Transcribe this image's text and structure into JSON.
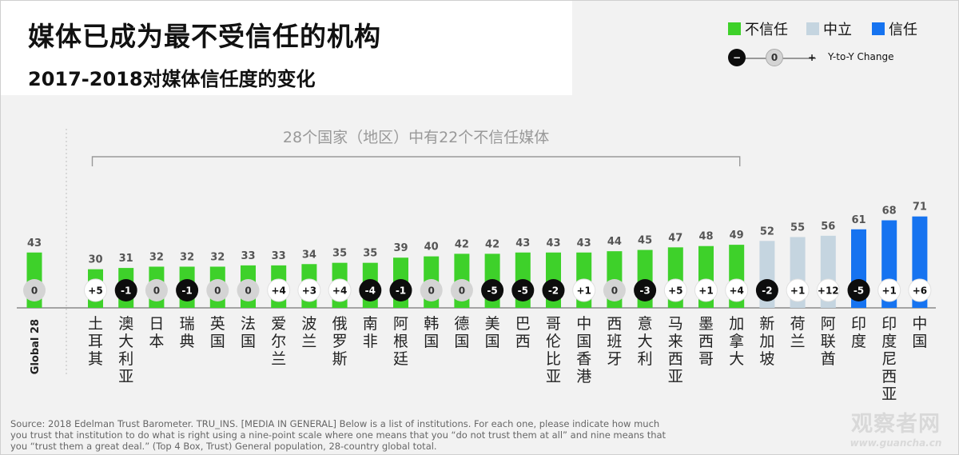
{
  "title": "媒体已成为最不受信任的机构",
  "subtitle": "2017-2018对媒体信任度的变化",
  "legend": {
    "distrust": "不信任",
    "neutral": "中立",
    "trust": "信任",
    "yoy_minus": "−",
    "yoy_zero": "0",
    "yoy_plus": "+",
    "yoy_label": "Y-to-Y Change"
  },
  "colors": {
    "distrust": "#3ed12a",
    "neutral": "#c5d5e0",
    "trust": "#1673f0",
    "circle_negative": "#0d0d0d",
    "circle_zero": "#d4d4d4",
    "circle_positive": "#ffffff"
  },
  "bracket_label": "28个国家（地区）中有22个不信任媒体",
  "chart_data": {
    "type": "bar",
    "title": "媒体已成为最不受信任的机构",
    "subtitle": "2017-2018对媒体信任度的变化",
    "ylim": [
      0,
      75
    ],
    "categories": [
      "Global 28",
      "土耳其",
      "澳大利亚",
      "日本",
      "瑞典",
      "英国",
      "法国",
      "爱尔兰",
      "波兰",
      "俄罗斯",
      "南非",
      "阿根廷",
      "韩国",
      "德国",
      "美国",
      "巴西",
      "哥伦比亚",
      "中国香港",
      "西班牙",
      "意大利",
      "马来西亚",
      "墨西哥",
      "加拿大",
      "新加坡",
      "荷兰",
      "阿联酋",
      "印度",
      "印度尼西亚",
      "中国"
    ],
    "values": [
      43,
      30,
      31,
      32,
      32,
      32,
      33,
      33,
      34,
      35,
      35,
      39,
      40,
      42,
      42,
      43,
      43,
      43,
      44,
      45,
      47,
      48,
      49,
      52,
      55,
      56,
      61,
      68,
      71
    ],
    "changes": [
      "0",
      "+5",
      "-1",
      "0",
      "-1",
      "0",
      "0",
      "+4",
      "+3",
      "+4",
      "-4",
      "-1",
      "0",
      "0",
      "-5",
      "-5",
      "-2",
      "+1",
      "0",
      "-3",
      "+5",
      "+1",
      "+4",
      "-2",
      "+1",
      "+12",
      "-5",
      "+1",
      "+6"
    ],
    "categories_level": [
      "distrust",
      "distrust",
      "distrust",
      "distrust",
      "distrust",
      "distrust",
      "distrust",
      "distrust",
      "distrust",
      "distrust",
      "distrust",
      "distrust",
      "distrust",
      "distrust",
      "distrust",
      "distrust",
      "distrust",
      "distrust",
      "distrust",
      "distrust",
      "distrust",
      "distrust",
      "distrust",
      "neutral",
      "neutral",
      "neutral",
      "trust",
      "trust",
      "trust"
    ]
  },
  "source": "Source: 2018 Edelman Trust Barometer. TRU_INS. [MEDIA IN GENERAL] Below is a list of institutions. For each one, please indicate how much you trust that institution to do what is right using a nine-point scale where one means that you “do not trust them at all” and nine means that you “trust them a great deal.” (Top 4 Box, Trust) General population, 28-country global total.",
  "watermark": {
    "cn": "观察者网",
    "url": "www.guancha.cn"
  }
}
